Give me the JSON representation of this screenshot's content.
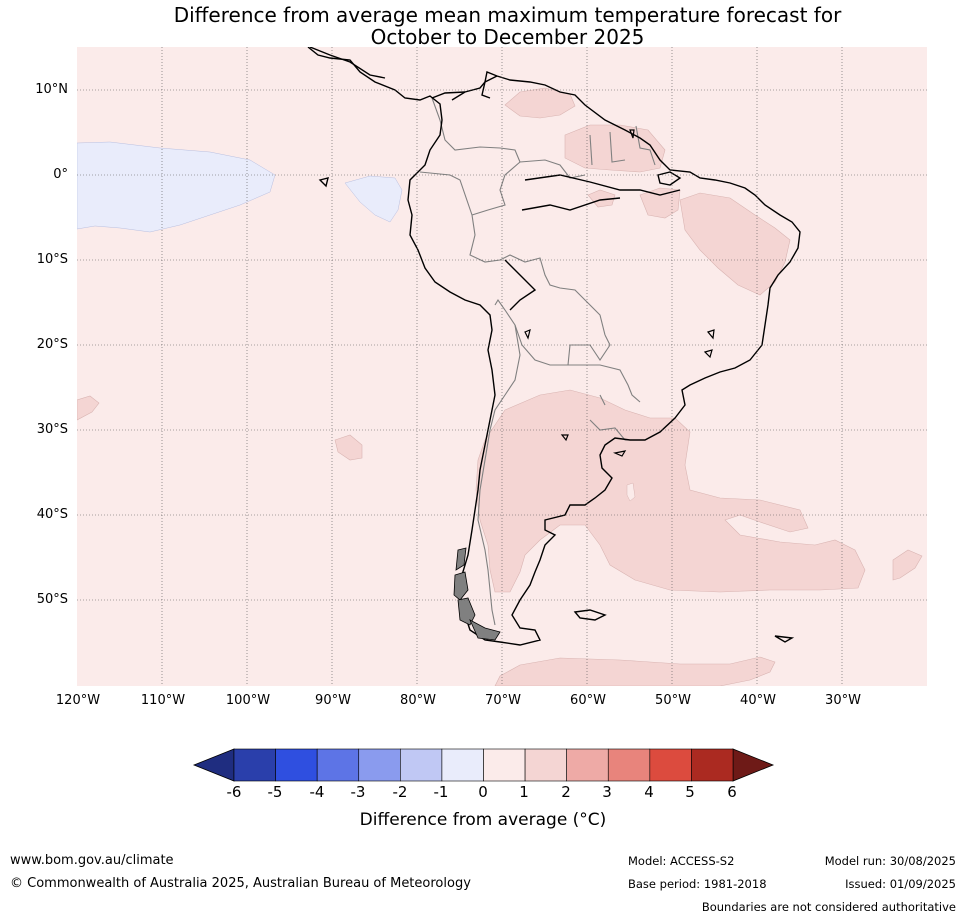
{
  "title": {
    "line1": "Difference from average mean maximum temperature forecast for",
    "line2": "October to December 2025"
  },
  "map": {
    "lon_range": [
      -120,
      -20
    ],
    "lat_range": [
      -60,
      15
    ],
    "lat_labels": [
      "10°N",
      "0°",
      "10°S",
      "20°S",
      "30°S",
      "40°S",
      "50°S"
    ],
    "lon_labels": [
      "120°W",
      "110°W",
      "100°W",
      "90°W",
      "80°W",
      "70°W",
      "60°W",
      "50°W",
      "40°W",
      "30°W"
    ],
    "background_class": "0 to 1",
    "background_color": "#fbebea",
    "regions": [
      {
        "name": "equatorial-pacific-cool",
        "range": "-1 to 0",
        "color": "#e9ecfb"
      },
      {
        "name": "galapagos-cool",
        "range": "-1 to 0",
        "color": "#e9ecfb"
      },
      {
        "name": "northeast-brazil-warm",
        "range": "1 to 2",
        "color": "#f4d5d3"
      },
      {
        "name": "guianas-warm",
        "range": "1 to 2",
        "color": "#f4d5d3"
      },
      {
        "name": "amazon-warm",
        "range": "1 to 2",
        "color": "#f4d5d3"
      },
      {
        "name": "southern-cone-warm",
        "range": "1 to 2",
        "color": "#f4d5d3"
      },
      {
        "name": "south-atlantic-warm",
        "range": "1 to 2",
        "color": "#f4d5d3"
      },
      {
        "name": "southern-ocean-warm",
        "range": "1 to 2",
        "color": "#f4d5d3"
      }
    ]
  },
  "colorbar": {
    "ticks": [
      "-6",
      "-5",
      "-4",
      "-3",
      "-2",
      "-1",
      "0",
      "1",
      "2",
      "3",
      "4",
      "5",
      "6"
    ],
    "colors": [
      "#2a3fab",
      "#2f4fe0",
      "#5d74e6",
      "#8a9bee",
      "#c0c8f4",
      "#e9ecfb",
      "#fbebea",
      "#f4d5d3",
      "#eeaaa6",
      "#e8847c",
      "#dc4b3e",
      "#ab2a21"
    ],
    "under_color": "#1f2d80",
    "over_color": "#6e1a17",
    "label": "Difference from average (°C)"
  },
  "footer": {
    "url": "www.bom.gov.au/climate",
    "copyright": "© Commonwealth of Australia 2025, Australian Bureau of Meteorology",
    "model": "Model: ACCESS-S2",
    "base_period": "Base period: 1981-2018",
    "model_run": "Model run: 30/08/2025",
    "issued": "Issued: 01/09/2025",
    "disclaimer": "Boundaries are not considered authoritative"
  }
}
